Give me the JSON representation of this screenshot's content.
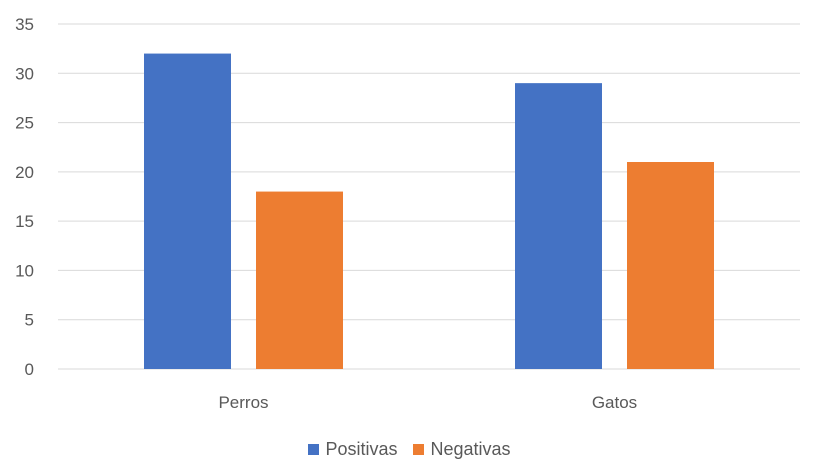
{
  "chart_data": {
    "type": "bar",
    "categories": [
      "Perros",
      "Gatos"
    ],
    "series": [
      {
        "name": "Positivas",
        "values": [
          32,
          29
        ],
        "color": "#4472C4"
      },
      {
        "name": "Negativas",
        "values": [
          18,
          21
        ],
        "color": "#ED7D31"
      }
    ],
    "title": "",
    "xlabel": "",
    "ylabel": "",
    "ylim": [
      0,
      35
    ],
    "yticks": [
      0,
      5,
      10,
      15,
      20,
      25,
      30,
      35
    ],
    "grid": true,
    "legend_position": "bottom",
    "gridline_color": "#d9d9d9"
  }
}
